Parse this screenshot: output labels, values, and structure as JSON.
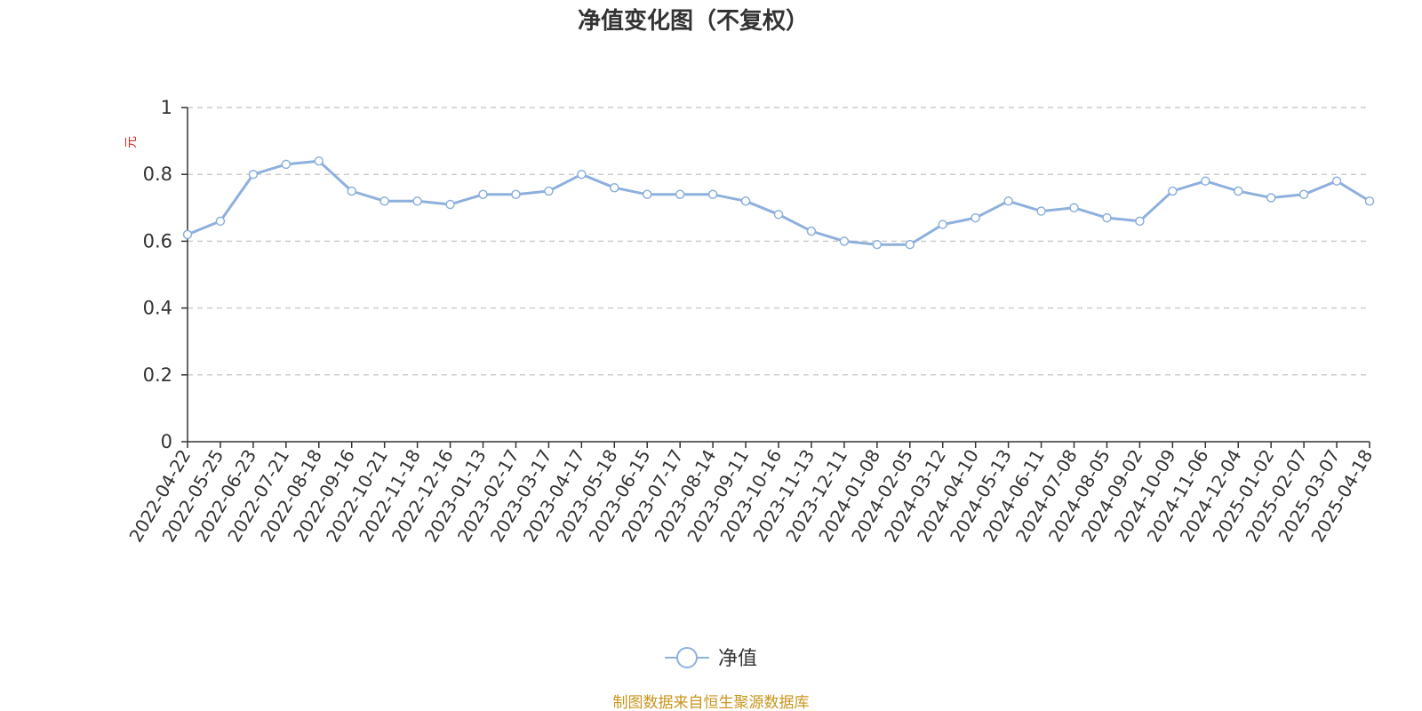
{
  "chart_data": {
    "type": "line",
    "title": "净值变化图（不复权）",
    "ylabel": "元",
    "ylim": [
      0,
      1
    ],
    "yticks": [
      "0",
      "0.2",
      "0.4",
      "0.6",
      "0.8",
      "1"
    ],
    "grid": true,
    "legend_position": "bottom-center",
    "x": [
      "2022-04-22",
      "2022-05-25",
      "2022-06-23",
      "2022-07-21",
      "2022-08-18",
      "2022-09-16",
      "2022-10-21",
      "2022-11-18",
      "2022-12-16",
      "2023-01-13",
      "2023-02-17",
      "2023-03-17",
      "2023-04-17",
      "2023-05-18",
      "2023-06-15",
      "2023-07-17",
      "2023-08-14",
      "2023-09-11",
      "2023-10-16",
      "2023-11-13",
      "2023-12-11",
      "2024-01-08",
      "2024-02-05",
      "2024-03-12",
      "2024-04-10",
      "2024-05-13",
      "2024-06-11",
      "2024-07-08",
      "2024-08-05",
      "2024-09-02",
      "2024-10-09",
      "2024-11-06",
      "2024-12-04",
      "2025-01-02",
      "2025-02-07",
      "2025-03-07",
      "2025-04-18"
    ],
    "series": [
      {
        "name": "净值",
        "color": "#8eb0dc",
        "values": [
          0.62,
          0.66,
          0.8,
          0.83,
          0.84,
          0.75,
          0.72,
          0.72,
          0.71,
          0.74,
          0.74,
          0.75,
          0.8,
          0.76,
          0.74,
          0.74,
          0.74,
          0.72,
          0.68,
          0.63,
          0.6,
          0.59,
          0.59,
          0.65,
          0.67,
          0.72,
          0.69,
          0.7,
          0.67,
          0.66,
          0.75,
          0.78,
          0.75,
          0.73,
          0.74,
          0.78,
          0.72
        ]
      }
    ]
  },
  "footer": {
    "source": "制图数据来自恒生聚源数据库"
  }
}
